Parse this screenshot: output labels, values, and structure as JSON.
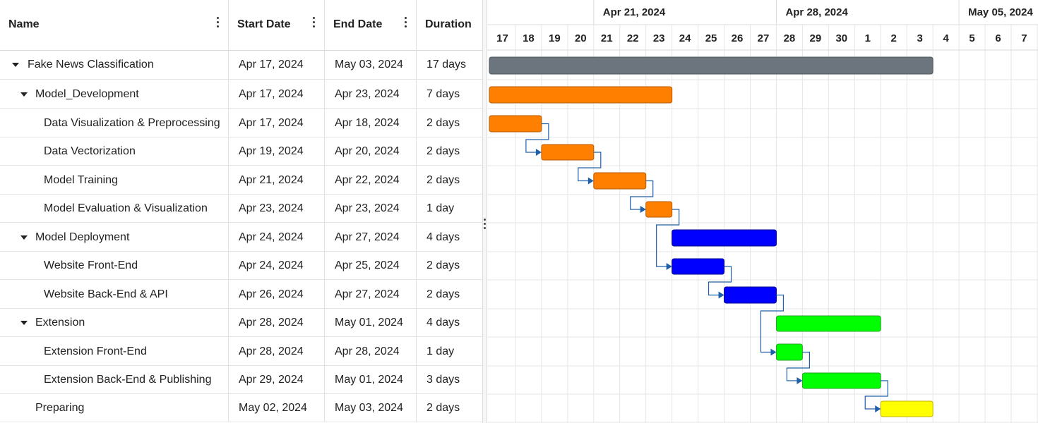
{
  "columns": [
    {
      "label": "Name",
      "menu": true
    },
    {
      "label": "Start Date",
      "menu": true
    },
    {
      "label": "End Date",
      "menu": true
    },
    {
      "label": "Duration",
      "menu": false
    }
  ],
  "tasks": [
    {
      "name": "Fake News Classification",
      "start": "Apr 17, 2024",
      "end": "May 03, 2024",
      "duration": "17 days",
      "level": 0,
      "expandable": true,
      "color": "#6c757d",
      "bar_start": "2024-04-17",
      "bar_end": "2024-05-03"
    },
    {
      "name": "Model_Development",
      "start": "Apr 17, 2024",
      "end": "Apr 23, 2024",
      "duration": "7 days",
      "level": 1,
      "expandable": true,
      "color": "#ff8000",
      "bar_start": "2024-04-17",
      "bar_end": "2024-04-23"
    },
    {
      "name": "Data Visualization & Preprocessing",
      "start": "Apr 17, 2024",
      "end": "Apr 18, 2024",
      "duration": "2 days",
      "level": 2,
      "expandable": false,
      "color": "#ff8000",
      "bar_start": "2024-04-17",
      "bar_end": "2024-04-18"
    },
    {
      "name": "Data Vectorization",
      "start": "Apr 19, 2024",
      "end": "Apr 20, 2024",
      "duration": "2 days",
      "level": 2,
      "expandable": false,
      "color": "#ff8000",
      "bar_start": "2024-04-19",
      "bar_end": "2024-04-20"
    },
    {
      "name": "Model Training",
      "start": "Apr 21, 2024",
      "end": "Apr 22, 2024",
      "duration": "2 days",
      "level": 2,
      "expandable": false,
      "color": "#ff8000",
      "bar_start": "2024-04-21",
      "bar_end": "2024-04-22"
    },
    {
      "name": "Model Evaluation & Visualization",
      "start": "Apr 23, 2024",
      "end": "Apr 23, 2024",
      "duration": "1 day",
      "level": 2,
      "expandable": false,
      "color": "#ff8000",
      "bar_start": "2024-04-23",
      "bar_end": "2024-04-23"
    },
    {
      "name": "Model Deployment",
      "start": "Apr 24, 2024",
      "end": "Apr 27, 2024",
      "duration": "4 days",
      "level": 1,
      "expandable": true,
      "color": "#0000ff",
      "bar_start": "2024-04-24",
      "bar_end": "2024-04-27"
    },
    {
      "name": "Website Front-End",
      "start": "Apr 24, 2024",
      "end": "Apr 25, 2024",
      "duration": "2 days",
      "level": 2,
      "expandable": false,
      "color": "#0000ff",
      "bar_start": "2024-04-24",
      "bar_end": "2024-04-25"
    },
    {
      "name": "Website Back-End & API",
      "start": "Apr 26, 2024",
      "end": "Apr 27, 2024",
      "duration": "2 days",
      "level": 2,
      "expandable": false,
      "color": "#0000ff",
      "bar_start": "2024-04-26",
      "bar_end": "2024-04-27"
    },
    {
      "name": "Extension",
      "start": "Apr 28, 2024",
      "end": "May 01, 2024",
      "duration": "4 days",
      "level": 1,
      "expandable": true,
      "color": "#00ff00",
      "bar_start": "2024-04-28",
      "bar_end": "2024-05-01"
    },
    {
      "name": "Extension Front-End",
      "start": "Apr 28, 2024",
      "end": "Apr 28, 2024",
      "duration": "1 day",
      "level": 2,
      "expandable": false,
      "color": "#00ff00",
      "bar_start": "2024-04-28",
      "bar_end": "2024-04-28"
    },
    {
      "name": "Extension Back-End & Publishing",
      "start": "Apr 29, 2024",
      "end": "May 01, 2024",
      "duration": "3 days",
      "level": 2,
      "expandable": false,
      "color": "#00ff00",
      "bar_start": "2024-04-29",
      "bar_end": "2024-05-01"
    },
    {
      "name": "Preparing",
      "start": "May 02, 2024",
      "end": "May 03, 2024",
      "duration": "2 days",
      "level": 1,
      "expandable": false,
      "color": "#ffff00",
      "bar_start": "2024-05-02",
      "bar_end": "2024-05-03"
    }
  ],
  "timeline": {
    "first_day": "2024-04-17",
    "day_labels": [
      "17",
      "18",
      "19",
      "20",
      "21",
      "22",
      "23",
      "24",
      "25",
      "26",
      "27",
      "28",
      "29",
      "30",
      "1",
      "2",
      "3",
      "4",
      "5",
      "6",
      "7"
    ],
    "weeks": [
      {
        "label": "Apr 21, 2024",
        "first_day": "2024-04-21"
      },
      {
        "label": "Apr 28, 2024",
        "first_day": "2024-04-28"
      },
      {
        "label": "May 05, 2024",
        "first_day": "2024-05-05"
      }
    ],
    "dependencies": [
      [
        2,
        3
      ],
      [
        3,
        4
      ],
      [
        4,
        5
      ],
      [
        5,
        7
      ],
      [
        7,
        8
      ],
      [
        8,
        10
      ],
      [
        10,
        11
      ],
      [
        11,
        12
      ]
    ],
    "link_color": "#1f5fa8",
    "grid_color": "#e6e6e6"
  }
}
